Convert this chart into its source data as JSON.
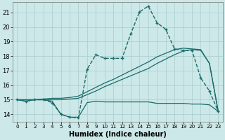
{
  "xlabel": "Humidex (Indice chaleur)",
  "xlim": [
    -0.5,
    23.5
  ],
  "ylim": [
    13.5,
    21.7
  ],
  "yticks": [
    14,
    15,
    16,
    17,
    18,
    19,
    20,
    21
  ],
  "xticks": [
    0,
    1,
    2,
    3,
    4,
    5,
    6,
    7,
    8,
    9,
    10,
    11,
    12,
    13,
    14,
    15,
    16,
    17,
    18,
    19,
    20,
    21,
    22,
    23
  ],
  "bg_color": "#cce8e8",
  "line_color": "#1a6b6b",
  "grid_color": "#aacccc",
  "series": [
    {
      "x": [
        0,
        1,
        2,
        3,
        4,
        5,
        6,
        7,
        8,
        9,
        10,
        11,
        12,
        13,
        14,
        15,
        16,
        17,
        18,
        19,
        20,
        21,
        22,
        23
      ],
      "y": [
        15.0,
        14.9,
        15.0,
        15.0,
        14.9,
        14.0,
        13.8,
        13.8,
        14.8,
        14.9,
        14.85,
        14.85,
        14.85,
        14.85,
        14.85,
        14.85,
        14.75,
        14.75,
        14.75,
        14.75,
        14.7,
        14.7,
        14.65,
        14.2
      ],
      "marker": null,
      "linestyle": "-",
      "linewidth": 0.9
    },
    {
      "x": [
        0,
        1,
        2,
        3,
        4,
        5,
        6,
        7,
        8,
        9,
        10,
        11,
        12,
        13,
        14,
        15,
        16,
        17,
        18,
        19,
        20,
        21,
        22,
        23
      ],
      "y": [
        15.0,
        15.0,
        15.0,
        15.0,
        15.0,
        15.0,
        15.05,
        15.1,
        15.35,
        15.6,
        15.9,
        16.15,
        16.4,
        16.65,
        16.9,
        17.15,
        17.5,
        17.8,
        18.1,
        18.35,
        18.45,
        18.4,
        17.5,
        14.2
      ],
      "marker": null,
      "linestyle": "-",
      "linewidth": 0.9
    },
    {
      "x": [
        0,
        1,
        2,
        3,
        4,
        5,
        6,
        7,
        8,
        9,
        10,
        11,
        12,
        13,
        14,
        15,
        16,
        17,
        18,
        19,
        20,
        21,
        22,
        23
      ],
      "y": [
        15.0,
        15.0,
        15.0,
        15.05,
        15.1,
        15.1,
        15.15,
        15.25,
        15.55,
        15.85,
        16.15,
        16.4,
        16.7,
        17.0,
        17.3,
        17.6,
        17.95,
        18.2,
        18.45,
        18.55,
        18.5,
        18.45,
        17.5,
        14.2
      ],
      "marker": null,
      "linestyle": "-",
      "linewidth": 0.9
    },
    {
      "x": [
        0,
        1,
        2,
        3,
        4,
        5,
        6,
        7,
        8,
        9,
        10,
        11,
        12,
        13,
        14,
        15,
        16,
        17,
        18,
        19,
        20,
        21,
        22,
        23
      ],
      "y": [
        15.0,
        14.9,
        15.0,
        15.0,
        14.8,
        14.0,
        13.8,
        13.75,
        17.1,
        18.1,
        17.85,
        17.85,
        17.85,
        19.55,
        21.05,
        21.45,
        20.3,
        19.85,
        18.5,
        18.4,
        18.4,
        16.5,
        15.6,
        14.2
      ],
      "marker": "+",
      "linestyle": "--",
      "linewidth": 1.0
    }
  ]
}
